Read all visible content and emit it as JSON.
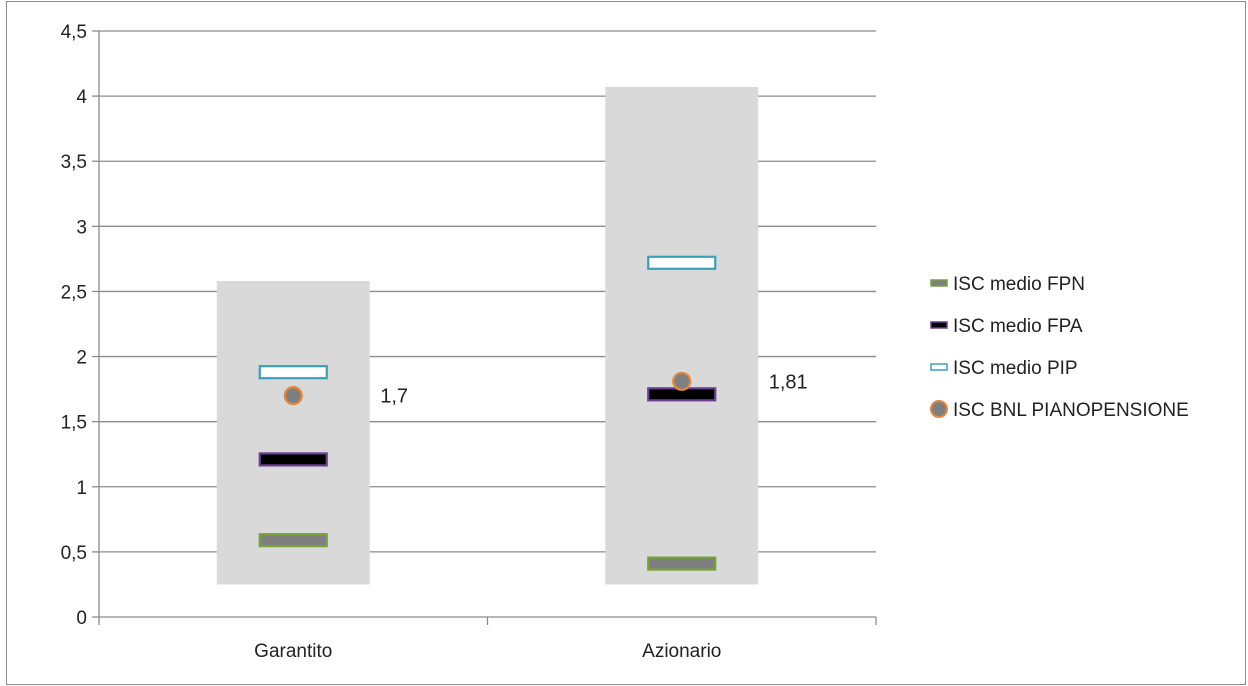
{
  "chart_data": {
    "type": "scatter",
    "categories": [
      "Garantito",
      "Azionario"
    ],
    "ylim": [
      0,
      4.5
    ],
    "y_ticks": [
      "0",
      "0,5",
      "1",
      "1,5",
      "2",
      "2,5",
      "3",
      "3,5",
      "4",
      "4,5"
    ],
    "grid": true,
    "legend_position": "right",
    "ranges": [
      {
        "category": "Garantito",
        "low": 0.25,
        "high": 2.58
      },
      {
        "category": "Azionario",
        "low": 0.25,
        "high": 4.07
      }
    ],
    "series": [
      {
        "name": "ISC medio FPN",
        "values": [
          0.59,
          0.41
        ],
        "marker": "dash",
        "fill": "#7f7f7f",
        "stroke": "#77a33a"
      },
      {
        "name": "ISC medio  FPA",
        "values": [
          1.21,
          1.71
        ],
        "marker": "dash",
        "fill": "#000000",
        "stroke": "#6b3f93"
      },
      {
        "name": "ISC medio PIP",
        "values": [
          1.88,
          2.72
        ],
        "marker": "dash",
        "fill": "#ffffff",
        "stroke": "#3aa0b8"
      },
      {
        "name": "ISC BNL PIANOPENSIONE",
        "values": [
          1.7,
          1.81
        ],
        "marker": "circle",
        "fill": "#7f7f7f",
        "stroke": "#e8873a"
      }
    ],
    "data_labels": [
      "1,7",
      "1,81"
    ],
    "range_color": "#d9d9d9"
  }
}
